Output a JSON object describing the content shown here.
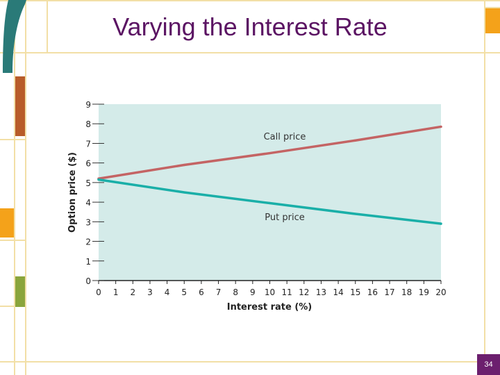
{
  "slide": {
    "title": "Varying the Interest Rate",
    "page_number": "34"
  },
  "colors": {
    "title": "#5b1463",
    "plot_background": "#d4ebe9",
    "call_line": "#c46464",
    "put_line": "#1aafa8",
    "decor_teal": "#2a7a78",
    "decor_orange": "#f4a21a",
    "decor_brown": "#b85c2a",
    "decor_green": "#8aa53c",
    "decor_lines": "#f2dfa6",
    "page_badge": "#6c1f6e"
  },
  "chart_data": {
    "type": "line",
    "xlabel": "Interest rate (%)",
    "ylabel": "Option price ($)",
    "xlim": [
      0,
      20
    ],
    "ylim": [
      0,
      9
    ],
    "x_ticks": [
      "0",
      "1",
      "2",
      "3",
      "4",
      "5",
      "6",
      "7",
      "8",
      "9",
      "10",
      "11",
      "12",
      "13",
      "14",
      "15",
      "16",
      "17",
      "18",
      "19",
      "20"
    ],
    "y_ticks": [
      "0",
      "1",
      "2",
      "3",
      "4",
      "5",
      "6",
      "7",
      "8",
      "9"
    ],
    "grid": false,
    "series": [
      {
        "name": "Call price",
        "x": [
          0,
          5,
          10,
          15,
          20
        ],
        "values": [
          5.2,
          5.9,
          6.5,
          7.15,
          7.85
        ]
      },
      {
        "name": "Put price",
        "x": [
          0,
          5,
          10,
          15,
          20
        ],
        "values": [
          5.15,
          4.5,
          3.95,
          3.4,
          2.9
        ]
      }
    ]
  }
}
